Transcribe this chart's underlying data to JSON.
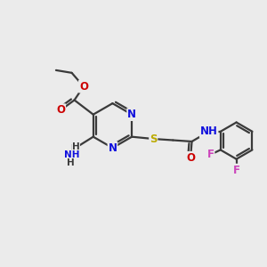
{
  "background_color": "#ebebeb",
  "bond_color": "#3a3a3a",
  "bond_width": 1.6,
  "atom_colors": {
    "N": "#1010dd",
    "O": "#cc0000",
    "S": "#bbaa00",
    "F": "#cc44bb",
    "C": "#3a3a3a",
    "H": "#3a3a3a"
  },
  "font_size": 8.5,
  "fig_size": [
    3.0,
    3.0
  ],
  "dpi": 100
}
